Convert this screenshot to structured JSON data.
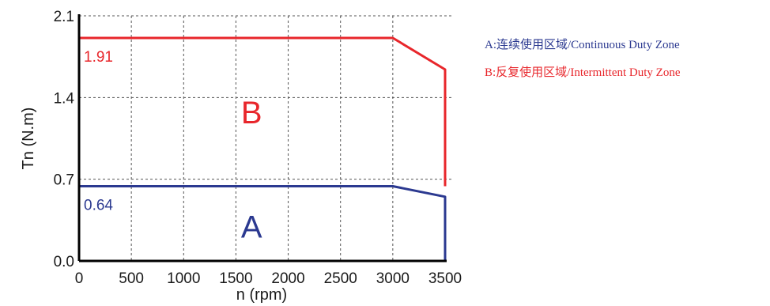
{
  "chart_data": {
    "type": "line",
    "xlabel": "n (rpm)",
    "ylabel": "Tn (N.m)",
    "xlim": [
      0,
      3500
    ],
    "ylim": [
      0,
      2.1
    ],
    "x_ticks": [
      "0",
      "500",
      "1000",
      "1500",
      "2000",
      "2500",
      "3000",
      "3500"
    ],
    "y_ticks": [
      "0.0",
      "0.7",
      "1.4",
      "2.1"
    ],
    "grid": true,
    "legend_position": "right",
    "series": [
      {
        "name": "A:连续使用区域/Continuous Duty Zone",
        "zone_label": "A",
        "value_label": "0.64",
        "color": "#2b3990",
        "points": [
          [
            0,
            0.64
          ],
          [
            3000,
            0.64
          ],
          [
            3500,
            0.55
          ],
          [
            3500,
            0
          ]
        ]
      },
      {
        "name": "B:反复使用区域/Intermittent Duty Zone",
        "zone_label": "B",
        "value_label": "1.91",
        "color": "#e8262b",
        "points": [
          [
            0,
            1.91
          ],
          [
            3000,
            1.91
          ],
          [
            3500,
            1.64
          ],
          [
            3500,
            0.64
          ]
        ]
      }
    ]
  }
}
